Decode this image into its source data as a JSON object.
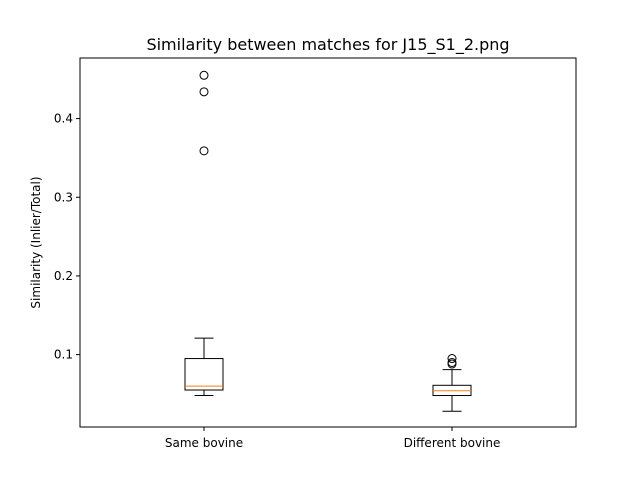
{
  "chart_data": {
    "type": "box",
    "title": "Similarity between matches for J15_S1_2.png",
    "xlabel": "",
    "ylabel": "Similarity (Inlier/Total)",
    "ylim": [
      0.008,
      0.477
    ],
    "yticks": [
      0.1,
      0.2,
      0.3,
      0.4
    ],
    "grid": false,
    "categories": [
      "Same bovine",
      "Different bovine"
    ],
    "boxes": [
      {
        "name": "Same bovine",
        "whisker_low": 0.048,
        "q1": 0.055,
        "median": 0.06,
        "q3": 0.095,
        "whisker_high": 0.121,
        "outliers": [
          0.455,
          0.434,
          0.359
        ]
      },
      {
        "name": "Different bovine",
        "whisker_low": 0.028,
        "q1": 0.048,
        "median": 0.054,
        "q3": 0.061,
        "whisker_high": 0.081,
        "outliers": [
          0.088,
          0.09,
          0.095
        ]
      }
    ],
    "colors": {
      "box": "#000000",
      "median": "#ff7f0e"
    }
  }
}
